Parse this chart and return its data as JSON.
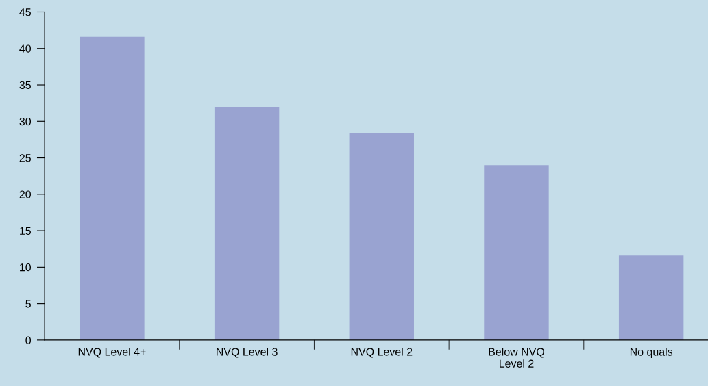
{
  "chart_data": {
    "type": "bar",
    "categories": [
      "NVQ Level 4+",
      "NVQ Level 3",
      "NVQ Level 2",
      "Below NVQ\nLevel 2",
      "No quals"
    ],
    "values": [
      41.6,
      32,
      28.4,
      24,
      11.6
    ],
    "color": "#99a3d1",
    "ylim": [
      0,
      45
    ],
    "yticks": [
      0,
      5,
      10,
      15,
      20,
      25,
      30,
      35,
      40,
      45
    ],
    "grid": false,
    "legend": false
  }
}
